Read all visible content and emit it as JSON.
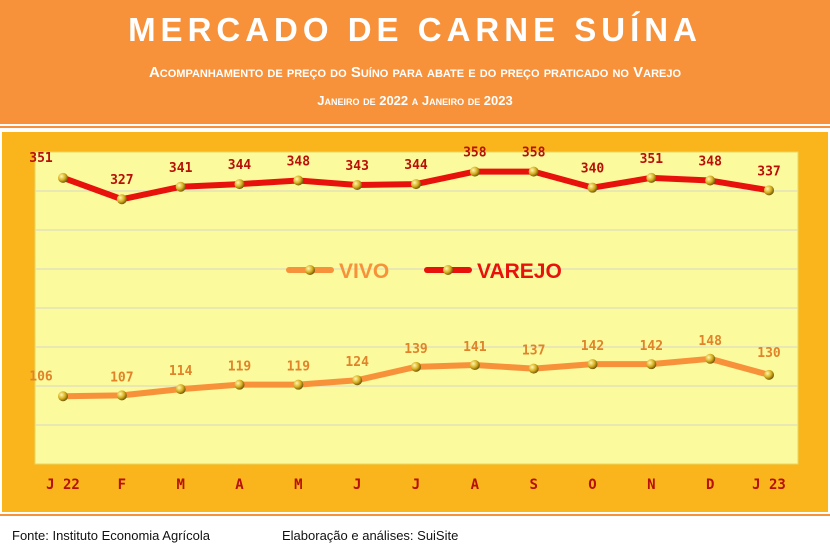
{
  "header": {
    "title": "MERCADO DE CARNE SUÍNA",
    "subtitle": "Acompanhamento de preço do Suíno para abate e do preço praticado no Varejo",
    "period": "Janeiro de 2022 a Janeiro de 2023"
  },
  "footer": {
    "source": "Fonte: Instituto Economia Agrícola",
    "credit": "Elaboração e análises: SuiSite"
  },
  "colors": {
    "header_bg": "#f7923a",
    "frame_bg": "#f9b51b",
    "plot_bg": "#fbfa9c",
    "vivo": "#f7923a",
    "varejo": "#e8120c",
    "label_vivo": "#e0832a",
    "label_varejo": "#b81008",
    "tick": "#b81008"
  },
  "chart_data": {
    "type": "line",
    "categories": [
      "J 22",
      "F",
      "M",
      "A",
      "M",
      "J",
      "J",
      "A",
      "S",
      "O",
      "N",
      "D",
      "J 23"
    ],
    "series": [
      {
        "name": "VIVO",
        "values": [
          106,
          107,
          114,
          119,
          119,
          124,
          139,
          141,
          137,
          142,
          142,
          148,
          130
        ]
      },
      {
        "name": "VAREJO",
        "values": [
          351,
          327,
          341,
          344,
          348,
          343,
          344,
          358,
          358,
          340,
          351,
          348,
          337
        ]
      }
    ],
    "data_labels": true,
    "legend": "center",
    "grid": true,
    "xlabel": "",
    "ylabel": ""
  }
}
